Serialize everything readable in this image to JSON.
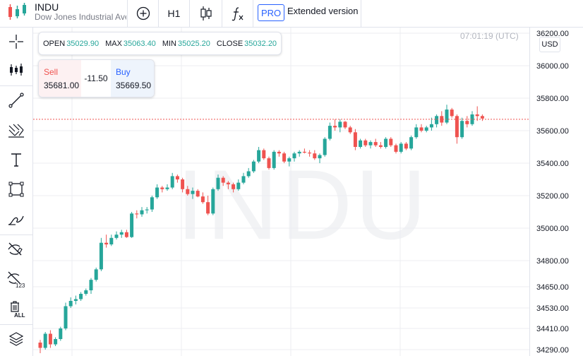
{
  "header": {
    "symbol": "INDU",
    "description": "Dow Jones Industrial Average",
    "interval": "H1",
    "pro_label": "PRO",
    "extended_label": "Extended version",
    "icons": [
      "candles-logo-icon",
      "add-compare-icon",
      "candlestick-type-icon",
      "indicators-fx-icon"
    ]
  },
  "left_toolbar": {
    "icons": [
      "crosshair-icon",
      "candle-settings-icon",
      "trend-line-icon",
      "fib-tool-icon",
      "text-tool-icon",
      "rectangle-tool-icon",
      "brush-tool-icon",
      "hide-drawings-icon",
      "hide-indicators-icon",
      "remove-all-icon",
      "layers-icon"
    ],
    "remove_all_label": "ALL",
    "hide_indicators_label": "123"
  },
  "ohlc": {
    "open_label": "OPEN",
    "open": "35029.90",
    "max_label": "MAX",
    "max": "35063.40",
    "min_label": "MIN",
    "min": "35025.20",
    "close_label": "CLOSE",
    "close": "35032.20"
  },
  "trade": {
    "sell_label": "Sell",
    "sell_price": "35681.00",
    "spread": "-11.50",
    "buy_label": "Buy",
    "buy_price": "35669.50"
  },
  "clock": "07:01:19 (UTC)",
  "currency": "USD",
  "watermark": "INDU",
  "colors": {
    "up": "#26a69a",
    "down": "#ef5350",
    "accent": "#2962ff",
    "grid": "#eceef2"
  },
  "chart_data": {
    "type": "candlestick",
    "y_ticks": [
      "36200.00",
      "36000.00",
      "35800.00",
      "35600.00",
      "35400.00",
      "35200.00",
      "35000.00",
      "34800.00",
      "34650.00",
      "34530.00",
      "34410.00",
      "34290.00"
    ],
    "current_price": 35670,
    "candles": [
      [
        34330,
        34345,
        34270,
        34300
      ],
      [
        34300,
        34390,
        34290,
        34380
      ],
      [
        34380,
        34400,
        34300,
        34320
      ],
      [
        34320,
        34360,
        34310,
        34350
      ],
      [
        34350,
        34420,
        34340,
        34410
      ],
      [
        34410,
        34560,
        34400,
        34540
      ],
      [
        34540,
        34590,
        34530,
        34570
      ],
      [
        34570,
        34600,
        34550,
        34580
      ],
      [
        34580,
        34620,
        34570,
        34610
      ],
      [
        34610,
        34640,
        34600,
        34630
      ],
      [
        34630,
        34700,
        34610,
        34690
      ],
      [
        34690,
        34760,
        34680,
        34750
      ],
      [
        34750,
        34940,
        34740,
        34910
      ],
      [
        34910,
        34960,
        34880,
        34900
      ],
      [
        34900,
        34960,
        34890,
        34940
      ],
      [
        34940,
        34980,
        34930,
        34960
      ],
      [
        34960,
        34990,
        34940,
        34975
      ],
      [
        34975,
        34990,
        34940,
        34945
      ],
      [
        34945,
        35100,
        34940,
        35090
      ],
      [
        35090,
        35110,
        35060,
        35085
      ],
      [
        35085,
        35130,
        35070,
        35110
      ],
      [
        35110,
        35130,
        35090,
        35115
      ],
      [
        35115,
        35200,
        35100,
        35190
      ],
      [
        35190,
        35270,
        35180,
        35250
      ],
      [
        35250,
        35260,
        35220,
        35240
      ],
      [
        35240,
        35270,
        35230,
        35250
      ],
      [
        35250,
        35340,
        35240,
        35320
      ],
      [
        35320,
        35330,
        35280,
        35300
      ],
      [
        35300,
        35310,
        35220,
        35240
      ],
      [
        35240,
        35260,
        35200,
        35210
      ],
      [
        35210,
        35250,
        35180,
        35230
      ],
      [
        35230,
        35240,
        35190,
        35195
      ],
      [
        35195,
        35220,
        35150,
        35160
      ],
      [
        35160,
        35200,
        35080,
        35090
      ],
      [
        35090,
        35250,
        35080,
        35240
      ],
      [
        35240,
        35330,
        35230,
        35310
      ],
      [
        35310,
        35320,
        35260,
        35280
      ],
      [
        35280,
        35290,
        35240,
        35270
      ],
      [
        35270,
        35280,
        35220,
        35240
      ],
      [
        35240,
        35300,
        35230,
        35280
      ],
      [
        35280,
        35340,
        35270,
        35320
      ],
      [
        35320,
        35370,
        35310,
        35350
      ],
      [
        35350,
        35420,
        35340,
        35410
      ],
      [
        35410,
        35500,
        35400,
        35480
      ],
      [
        35480,
        35490,
        35420,
        35430
      ],
      [
        35430,
        35440,
        35360,
        35370
      ],
      [
        35370,
        35480,
        35360,
        35470
      ],
      [
        35470,
        35480,
        35440,
        35460
      ],
      [
        35460,
        35470,
        35400,
        35410
      ],
      [
        35410,
        35440,
        35380,
        35430
      ],
      [
        35430,
        35470,
        35410,
        35460
      ],
      [
        35460,
        35480,
        35440,
        35470
      ],
      [
        35470,
        35490,
        35460,
        35465
      ],
      [
        35465,
        35480,
        35440,
        35460
      ],
      [
        35460,
        35480,
        35420,
        35430
      ],
      [
        35430,
        35460,
        35400,
        35450
      ],
      [
        35450,
        35560,
        35440,
        35550
      ],
      [
        35550,
        35650,
        35540,
        35630
      ],
      [
        35630,
        35670,
        35600,
        35620
      ],
      [
        35620,
        35670,
        35590,
        35655
      ],
      [
        35655,
        35660,
        35610,
        35620
      ],
      [
        35620,
        35630,
        35580,
        35590
      ],
      [
        35590,
        35610,
        35480,
        35500
      ],
      [
        35500,
        35550,
        35490,
        35540
      ],
      [
        35540,
        35550,
        35500,
        35510
      ],
      [
        35510,
        35540,
        35490,
        35530
      ],
      [
        35530,
        35550,
        35500,
        35510
      ],
      [
        35510,
        35530,
        35490,
        35500
      ],
      [
        35500,
        35560,
        35490,
        35550
      ],
      [
        35550,
        35560,
        35500,
        35510
      ],
      [
        35510,
        35520,
        35460,
        35470
      ],
      [
        35470,
        35530,
        35460,
        35520
      ],
      [
        35520,
        35530,
        35480,
        35490
      ],
      [
        35490,
        35570,
        35480,
        35560
      ],
      [
        35560,
        35640,
        35550,
        35620
      ],
      [
        35620,
        35640,
        35590,
        35600
      ],
      [
        35600,
        35630,
        35590,
        35620
      ],
      [
        35620,
        35680,
        35600,
        35640
      ],
      [
        35640,
        35700,
        35620,
        35690
      ],
      [
        35690,
        35720,
        35630,
        35650
      ],
      [
        35650,
        35760,
        35640,
        35730
      ],
      [
        35730,
        35740,
        35680,
        35690
      ],
      [
        35690,
        35700,
        35520,
        35560
      ],
      [
        35560,
        35680,
        35550,
        35660
      ],
      [
        35660,
        35690,
        35620,
        35640
      ],
      [
        35640,
        35720,
        35630,
        35700
      ],
      [
        35700,
        35750,
        35660,
        35690
      ],
      [
        35690,
        35700,
        35660,
        35675
      ]
    ]
  }
}
